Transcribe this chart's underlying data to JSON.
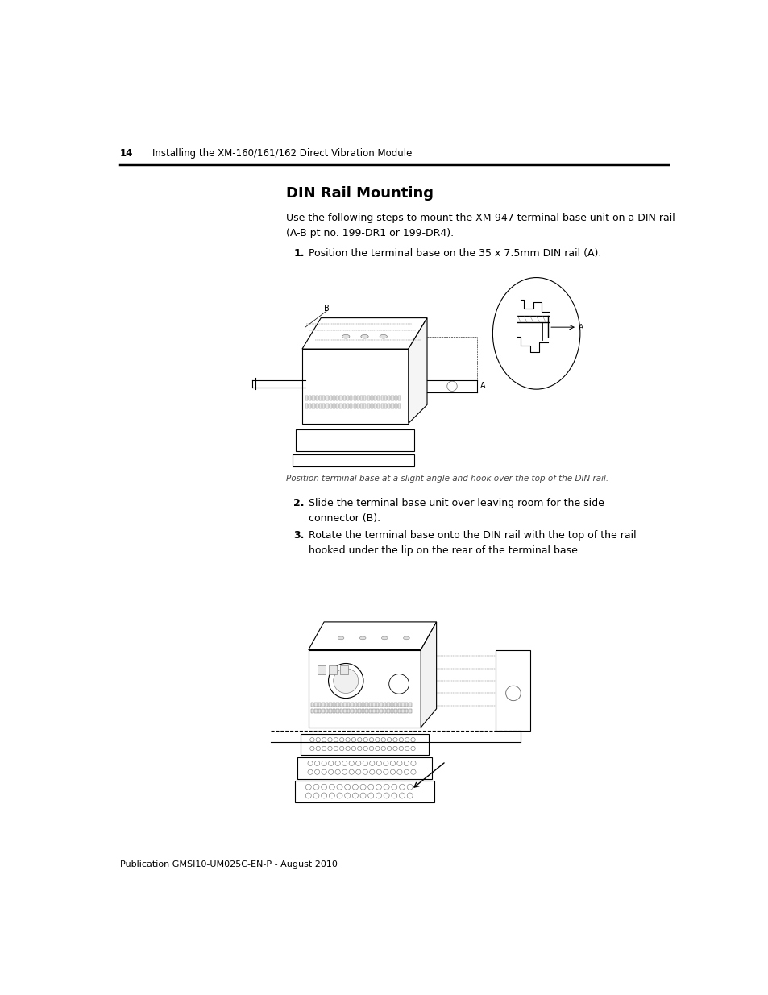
{
  "page_number": "14",
  "header_text": "Installing the XM-160/161/162 Direct Vibration Module",
  "footer_text": "Publication GMSI10-UM025C-EN-P - August 2010",
  "section_title": "DIN Rail Mounting",
  "intro_text": "Use the following steps to mount the XM-947 terminal base unit on a DIN rail\n(A-B pt no. 199-DR1 or 199-DR4).",
  "step1": "Position the terminal base on the 35 x 7.5mm DIN rail (A).",
  "step2": "Slide the terminal base unit over leaving room for the side\nconnector (B).",
  "step3": "Rotate the terminal base onto the DIN rail with the top of the rail\nhooked under the lip on the rear of the terminal base.",
  "caption1": "Position terminal base at a slight angle and hook over the top of the DIN rail.",
  "bg": "#ffffff",
  "lc": "#000000",
  "tc": "#000000",
  "gc": "#666666",
  "lw_main": 0.8,
  "lw_thin": 0.4,
  "lw_header": 2.5
}
